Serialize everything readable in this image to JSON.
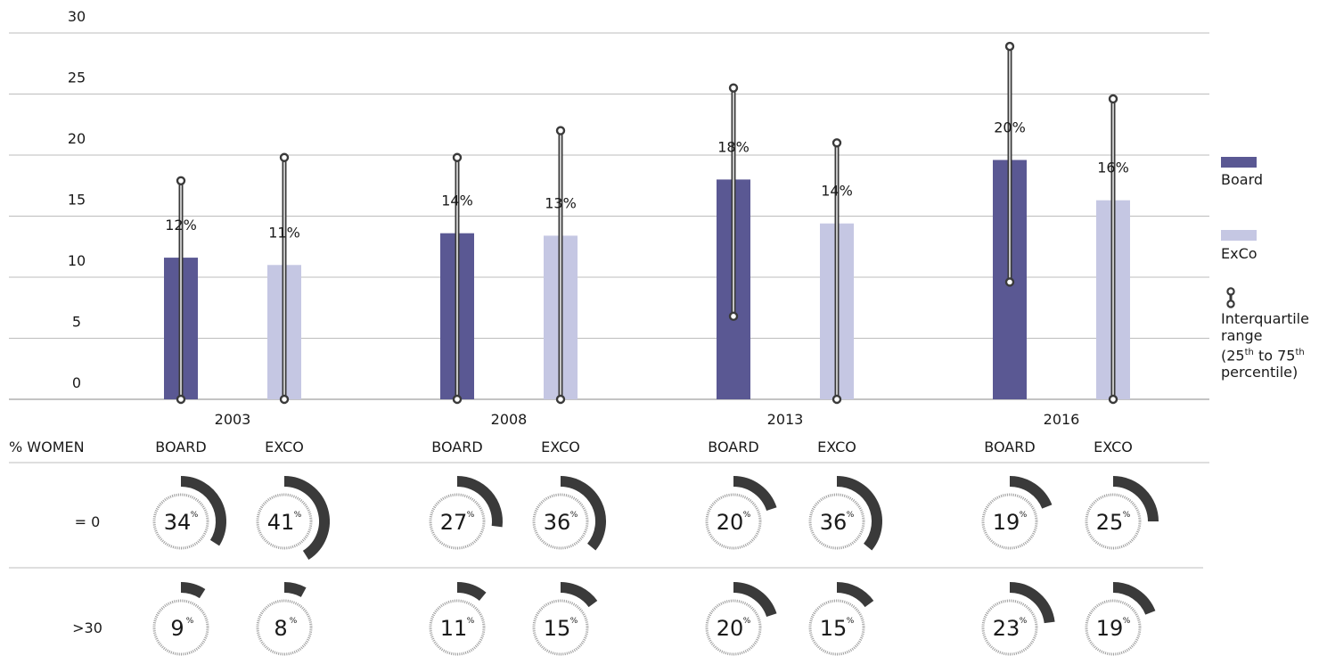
{
  "colors": {
    "board": "#5a5893",
    "exco": "#c5c7e3",
    "grid": "#bdbdbd",
    "whisker": "#3a3a3a",
    "ring_arc": "#3a3a3a",
    "ring_dash": "#9a9a9a"
  },
  "chart_data": {
    "type": "bar",
    "ylim": [
      0,
      30
    ],
    "yticks": [
      "0",
      "5",
      "10",
      "15",
      "20",
      "25",
      "30"
    ],
    "categories": [
      "2003",
      "2008",
      "2013",
      "2016"
    ],
    "series": [
      {
        "name": "Board",
        "values": [
          11.6,
          13.6,
          18.0,
          19.6
        ],
        "labels": [
          "12%",
          "14%",
          "18%",
          "20%"
        ]
      },
      {
        "name": "ExCo",
        "values": [
          11.0,
          13.4,
          14.4,
          16.3
        ],
        "labels": [
          "11%",
          "13%",
          "14%",
          "16%"
        ]
      }
    ],
    "interquartile": {
      "Board": [
        [
          0,
          17.9
        ],
        [
          0,
          19.8
        ],
        [
          6.8,
          25.5
        ],
        [
          9.6,
          28.9
        ]
      ],
      "ExCo": [
        [
          0,
          19.8
        ],
        [
          0,
          22.0
        ],
        [
          0,
          21.0
        ],
        [
          0,
          24.6
        ]
      ]
    },
    "legend": {
      "board": "Board",
      "exco": "ExCo",
      "iqr": [
        "Interquartile",
        "range"
      ],
      "iqr_note": {
        "open": "(25",
        "th1": "th",
        "mid": " to 75",
        "th2": "th",
        "close": "percentile)"
      }
    }
  },
  "table": {
    "header_label": "% WOMEN",
    "col_board": "BOARD",
    "col_exco": "EXCO",
    "rows": [
      {
        "label": "= 0",
        "values": [
          [
            34,
            41
          ],
          [
            27,
            36
          ],
          [
            20,
            36
          ],
          [
            19,
            25
          ]
        ]
      },
      {
        "label": ">30",
        "values": [
          [
            9,
            8
          ],
          [
            11,
            15
          ],
          [
            20,
            15
          ],
          [
            23,
            19
          ]
        ]
      }
    ],
    "pct_sign": "%"
  }
}
